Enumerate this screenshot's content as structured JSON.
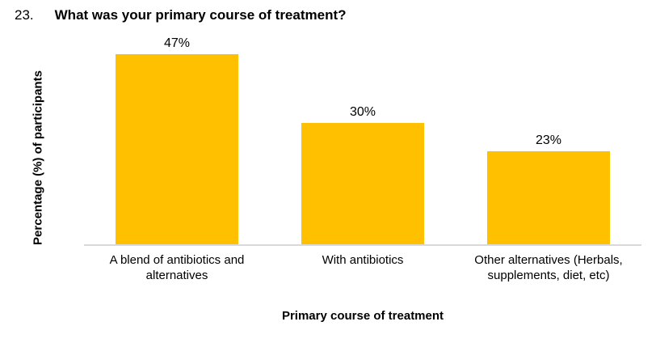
{
  "title": {
    "number": "23.",
    "text": "What was your primary course of treatment?"
  },
  "chart_data": {
    "type": "bar",
    "categories": [
      "A blend of antibiotics and alternatives",
      "With antibiotics",
      "Other alternatives (Herbals, supplements, diet, etc)"
    ],
    "values": [
      47,
      30,
      23
    ],
    "data_labels": [
      "47%",
      "30%",
      "23%"
    ],
    "title": "What was your primary course of treatment?",
    "xlabel": "Primary course of treatment",
    "ylabel": "Percentage (%) of participants",
    "ylim": [
      0,
      50
    ],
    "grid": false,
    "legend": false,
    "bar_color": "#FFC000",
    "axis_line_color": "#D9D9D9",
    "text_color": "#000000"
  }
}
